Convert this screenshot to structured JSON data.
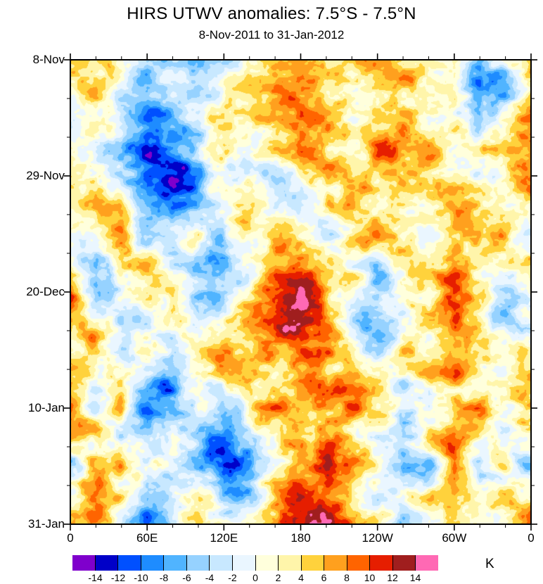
{
  "chart_data": {
    "type": "heatmap",
    "title": "HIRS UTWV anomalies: 7.5°S - 7.5°N",
    "subtitle": "8-Nov-2011 to 31-Jan-2012",
    "x_tick_labels": [
      "0",
      "60E",
      "120E",
      "180",
      "120W",
      "60W",
      "0"
    ],
    "y_tick_labels": [
      "8-Nov",
      "29-Nov",
      "20-Dec",
      "10-Jan",
      "31-Jan"
    ],
    "x_range_deg": [
      0,
      360
    ],
    "colorbar": {
      "levels": [
        -14,
        -12,
        -10,
        -8,
        -6,
        -4,
        -2,
        0,
        2,
        4,
        6,
        8,
        10,
        12,
        14
      ],
      "labels": [
        "-14",
        "-12",
        "-10",
        "-8",
        "-6",
        "-4",
        "-2",
        "0",
        "2",
        "4",
        "6",
        "8",
        "10",
        "12",
        "14"
      ],
      "colors": [
        "#7F00CC",
        "#0000C8",
        "#0050FF",
        "#1E8CFF",
        "#50B4FF",
        "#96D2FF",
        "#C8E8FF",
        "#EAF6FF",
        "#FFFFDC",
        "#FFF5AA",
        "#FFD23C",
        "#FFA01E",
        "#FF6400",
        "#E61E00",
        "#A01E1E",
        "#FF69B4"
      ],
      "unit": "K"
    },
    "grid_description": "Estimated anomaly field (K); rows = time from 8-Nov-2011 (top) to 31-Jan-2012 (bottom), columns = longitude 0E to 360 in 20-degree steps",
    "grid": [
      [
        5,
        7,
        2,
        -4,
        -2,
        -5,
        -2,
        3,
        7,
        6,
        5,
        2,
        6,
        7,
        2,
        3,
        -6,
        -2,
        6
      ],
      [
        2,
        4,
        -2,
        -7,
        -4,
        -6,
        2,
        5,
        8,
        7,
        3,
        4,
        7,
        5,
        3,
        2,
        -8,
        -5,
        4
      ],
      [
        -2,
        2,
        -4,
        -10,
        -7,
        -2,
        3,
        2,
        5,
        8,
        6,
        3,
        5,
        7,
        -2,
        4,
        -5,
        2,
        6
      ],
      [
        4,
        -2,
        -7,
        -13,
        -11,
        -5,
        2,
        -3,
        2,
        6,
        4,
        2,
        8,
        9,
        4,
        -2,
        3,
        6,
        9
      ],
      [
        7,
        3,
        -5,
        -12,
        -13,
        -7,
        -2,
        2,
        -3,
        3,
        6,
        5,
        6,
        9,
        5,
        2,
        -2,
        4,
        10
      ],
      [
        3,
        6,
        2,
        -7,
        -9,
        -4,
        3,
        5,
        2,
        -4,
        2,
        6,
        4,
        6,
        2,
        6,
        3,
        -2,
        4
      ],
      [
        -3,
        2,
        7,
        -4,
        -5,
        2,
        -4,
        3,
        6,
        4,
        -2,
        3,
        8,
        3,
        -3,
        7,
        6,
        2,
        -3
      ],
      [
        4,
        -7,
        2,
        5,
        -2,
        -6,
        -7,
        -3,
        7,
        10,
        5,
        2,
        -4,
        2,
        6,
        8,
        2,
        3,
        6
      ],
      [
        7,
        -9,
        -3,
        3,
        4,
        -6,
        -5,
        2,
        11,
        13,
        7,
        2,
        -5,
        -2,
        4,
        9,
        4,
        -3,
        3
      ],
      [
        8,
        2,
        -6,
        -2,
        6,
        -3,
        2,
        7,
        10,
        14,
        8,
        -2,
        -6,
        2,
        6,
        10,
        2,
        -6,
        -2
      ],
      [
        5,
        7,
        -2,
        3,
        -4,
        2,
        5,
        3,
        6,
        9,
        5,
        2,
        -4,
        4,
        2,
        8,
        5,
        2,
        4
      ],
      [
        7,
        3,
        2,
        -6,
        -8,
        -3,
        2,
        6,
        3,
        7,
        8,
        6,
        2,
        -2,
        5,
        7,
        2,
        4,
        7
      ],
      [
        8,
        -2,
        4,
        -8,
        -5,
        2,
        -4,
        2,
        7,
        6,
        9,
        8,
        3,
        2,
        -3,
        5,
        7,
        2,
        5
      ],
      [
        3,
        5,
        -3,
        -5,
        2,
        -6,
        -8,
        -4,
        2,
        9,
        8,
        4,
        -2,
        -5,
        2,
        8,
        3,
        -4,
        2
      ],
      [
        -4,
        2,
        6,
        2,
        -3,
        -5,
        -11,
        -8,
        2,
        8,
        12,
        6,
        2,
        -7,
        -4,
        7,
        -2,
        2,
        -5
      ],
      [
        4,
        9,
        2,
        -7,
        -2,
        2,
        -7,
        -4,
        7,
        14,
        11,
        5,
        -3,
        -2,
        4,
        8,
        2,
        5,
        3
      ],
      [
        8,
        5,
        -2,
        -9,
        -4,
        3,
        2,
        5,
        10,
        16,
        15,
        8,
        2,
        -5,
        2,
        6,
        3,
        2,
        8
      ]
    ]
  }
}
